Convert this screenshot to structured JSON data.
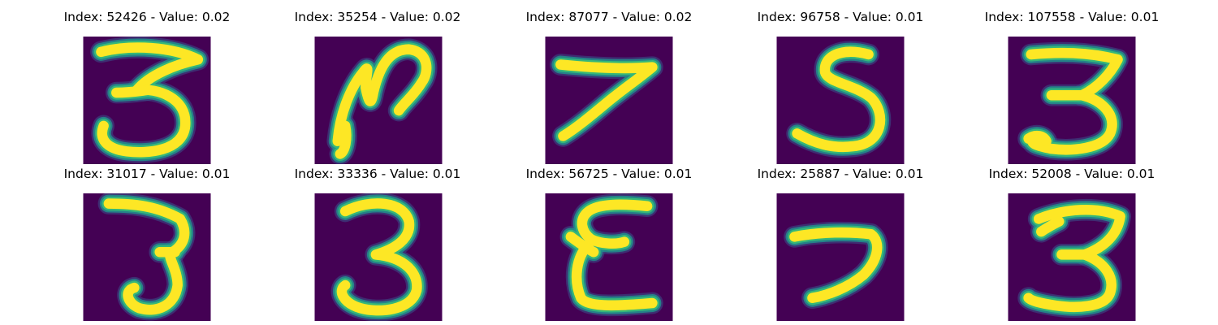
{
  "figure": {
    "background_color": "#440154",
    "stroke_color": "#fde725",
    "edge_colors": [
      "#35b779",
      "#21918c",
      "#3b528b"
    ],
    "panels": [
      {
        "title": "Index: 52426 - Value: 0.02",
        "index": 52426,
        "value": 0.02
      },
      {
        "title": "Index: 35254 - Value: 0.02",
        "index": 35254,
        "value": 0.02
      },
      {
        "title": "Index: 87077 - Value: 0.02",
        "index": 87077,
        "value": 0.02
      },
      {
        "title": "Index: 96758 - Value: 0.01",
        "index": 96758,
        "value": 0.01
      },
      {
        "title": "Index: 107558 - Value: 0.01",
        "index": 107558,
        "value": 0.01
      },
      {
        "title": "Index: 31017 - Value: 0.01",
        "index": 31017,
        "value": 0.01
      },
      {
        "title": "Index: 33336 - Value: 0.01",
        "index": 33336,
        "value": 0.01
      },
      {
        "title": "Index: 56725 - Value: 0.01",
        "index": 56725,
        "value": 0.01
      },
      {
        "title": "Index: 25887 - Value: 0.01",
        "index": 25887,
        "value": 0.01
      },
      {
        "title": "Index: 52008 - Value: 0.01",
        "index": 52008,
        "value": 0.01
      }
    ]
  }
}
